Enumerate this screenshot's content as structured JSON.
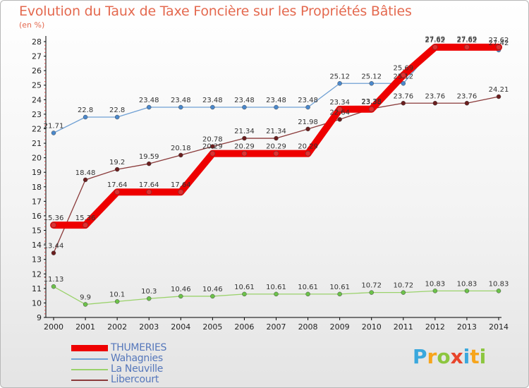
{
  "title": "Evolution du Taux de Taxe Foncière sur les Propriétés Bâties",
  "unit_label": "(en %)",
  "logo": {
    "text": "Proxiti",
    "letters": [
      "P",
      "r",
      "o",
      "x",
      "i",
      "t",
      "i"
    ],
    "colors": [
      "#3aa8dd",
      "#f7a51c",
      "#8cc63f",
      "#e8452c",
      "#3aa8dd",
      "#f7a51c",
      "#8cc63f"
    ]
  },
  "chart_data": {
    "type": "line",
    "x": [
      "2000",
      "2001",
      "2002",
      "2003",
      "2004",
      "2005",
      "2006",
      "2007",
      "2008",
      "2009",
      "2010",
      "2011",
      "2012",
      "2013",
      "2014"
    ],
    "ylim": [
      9,
      28
    ],
    "yticks": [
      9,
      10,
      11,
      12,
      13,
      14,
      15,
      16,
      17,
      18,
      19,
      20,
      21,
      22,
      23,
      24,
      25,
      26,
      27,
      28
    ],
    "grid": false,
    "legend_position": "bottom-left",
    "series": [
      {
        "name": "THUMERIES",
        "color": "#ee0000",
        "marker_color": "#e03030",
        "values": [
          15.36,
          15.36,
          17.64,
          17.64,
          17.64,
          20.29,
          20.29,
          20.29,
          20.29,
          23.34,
          23.35,
          25.69,
          27.62,
          27.62,
          27.62
        ],
        "labels": [
          "15.36",
          "15.36",
          "17.64",
          "17.64",
          "17.64",
          "20.29",
          "20.29",
          "20.29",
          "20.29",
          "23.34",
          "23.35",
          "25.69",
          "27.62",
          "27.62",
          "27.62"
        ]
      },
      {
        "name": "Wahagnies",
        "color": "#6fa0d4",
        "marker_color": "#4a88cc",
        "values": [
          21.71,
          22.8,
          22.8,
          23.48,
          23.48,
          23.48,
          23.48,
          23.48,
          23.48,
          25.12,
          25.12,
          25.12,
          27.69,
          27.69,
          27.42
        ],
        "labels": [
          "21.71",
          "22.8",
          "22.8",
          "23.48",
          "23.48",
          "23.48",
          "23.48",
          "23.48",
          "23.48",
          "25.12",
          "25.12",
          "25.12",
          "27.69",
          "27.69",
          "27.42"
        ]
      },
      {
        "name": "La Neuville",
        "color": "#9ad26b",
        "marker_color": "#6cc24a",
        "values": [
          11.13,
          9.9,
          10.1,
          10.3,
          10.46,
          10.46,
          10.61,
          10.61,
          10.61,
          10.61,
          10.72,
          10.72,
          10.83,
          10.83,
          10.83
        ],
        "labels": [
          "11.13",
          "9.9",
          "10.1",
          "10.3",
          "10.46",
          "10.46",
          "10.61",
          "10.61",
          "10.61",
          "10.61",
          "10.72",
          "10.72",
          "10.83",
          "10.83",
          "10.83"
        ]
      },
      {
        "name": "Libercourt",
        "color": "#8a3a3a",
        "marker_color": "#6b1e1e",
        "values": [
          13.44,
          18.48,
          19.2,
          19.59,
          20.18,
          20.78,
          21.34,
          21.34,
          21.98,
          22.64,
          23.38,
          23.76,
          23.76,
          23.76,
          24.21
        ],
        "labels": [
          "13.44",
          "18.48",
          "19.2",
          "19.59",
          "20.18",
          "20.78",
          "21.34",
          "21.34",
          "21.98",
          "22.64",
          "23.38",
          "23.76",
          "23.76",
          "23.76",
          "24.21"
        ]
      }
    ]
  }
}
